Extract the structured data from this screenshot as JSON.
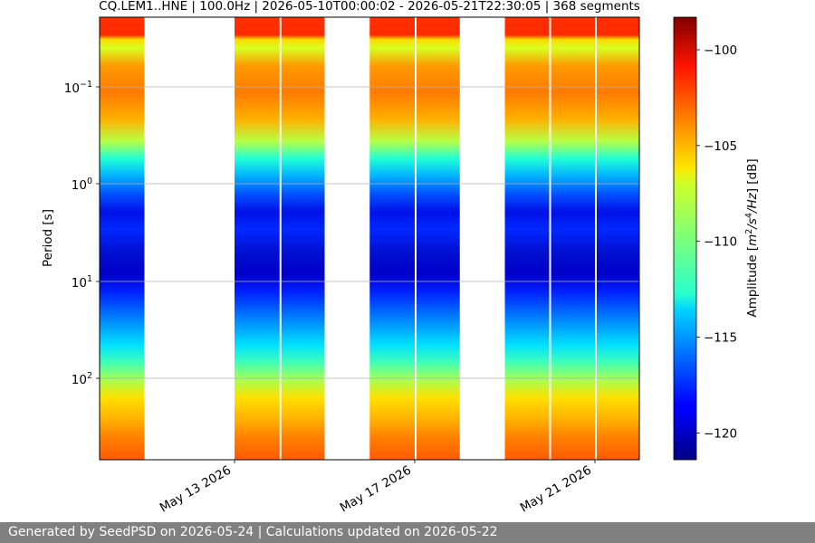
{
  "chart_data": {
    "type": "heatmap",
    "title": "CQ.LEM1..HNE | 100.0Hz | 2026-05-10T00:00:02 - 2026-05-21T22:30:05 | 368 segments",
    "xlabel": "",
    "ylabel": "Period [s]",
    "x_tick_labels": [
      "May 13 2026",
      "May 17 2026",
      "May 21 2026"
    ],
    "y_scale": "log",
    "y_inverted": true,
    "y_tick_labels": [
      "10^-1",
      "10^0",
      "10^1",
      "10^2"
    ],
    "grid": "horizontal",
    "colormap": "jet",
    "colorbar": {
      "label": "Amplitude [m^2/s^4/Hz] [dB]",
      "range": [
        -121.4,
        -98.3
      ],
      "ticks": [
        "−100",
        "−105",
        "−110",
        "−115",
        "−120"
      ]
    },
    "data_segments": [
      {
        "start": "2026-05-10",
        "end": "2026-05-11"
      },
      {
        "start": "2026-05-13",
        "end": "2026-05-15"
      },
      {
        "start": "2026-05-16",
        "end": "2026-05-18"
      },
      {
        "start": "2026-05-19",
        "end": "2026-05-22"
      }
    ]
  },
  "footer": "Generated by SeedPSD on 2026-05-24 | Calculations updated on 2026-05-22"
}
